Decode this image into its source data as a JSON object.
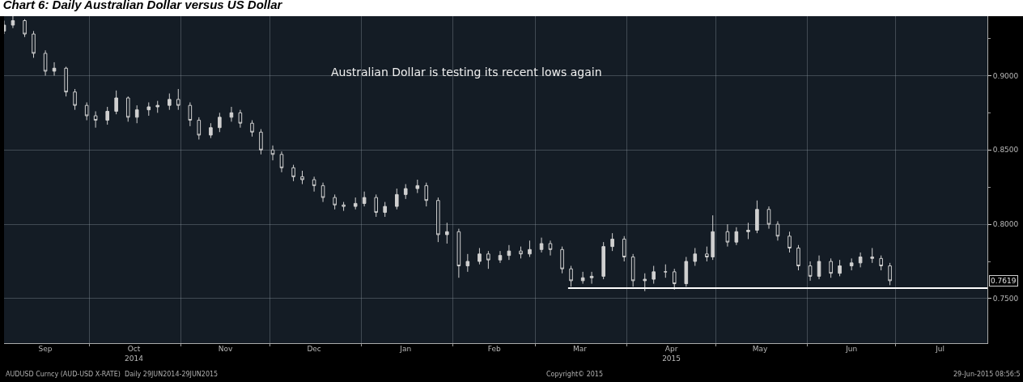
{
  "chart_data": {
    "type": "candlestick",
    "title": "Chart 6: Daily Australian Dollar versus US Dollar",
    "annotations": [
      "Australian Dollar is testing its recent lows again",
      "AUDUSD Curncy (AUD-USD X-RATE)  Daily 29JUN2014-29JUN2015",
      "Copyright© 2015",
      "29-Jun-2015 08:56:5",
      {
        "text": "0.7619",
        "y": 0.7619
      }
    ],
    "color": "#d0d0d0",
    "x": [
      "2014-09-02",
      "2014-09-05",
      "2014-09-09",
      "2014-09-12",
      "2014-09-16",
      "2014-09-19",
      "2014-09-23",
      "2014-09-26",
      "2014-09-30",
      "2014-10-03",
      "2014-10-07",
      "2014-10-10",
      "2014-10-14",
      "2014-10-17",
      "2014-10-21",
      "2014-10-24",
      "2014-10-28",
      "2014-10-31",
      "2014-11-04",
      "2014-11-07",
      "2014-11-11",
      "2014-11-14",
      "2014-11-18",
      "2014-11-21",
      "2014-11-25",
      "2014-11-28",
      "2014-12-02",
      "2014-12-05",
      "2014-12-09",
      "2014-12-12",
      "2014-12-16",
      "2014-12-19",
      "2014-12-23",
      "2014-12-26",
      "2014-12-30",
      "2015-01-02",
      "2015-01-06",
      "2015-01-09",
      "2015-01-13",
      "2015-01-16",
      "2015-01-20",
      "2015-01-23",
      "2015-01-27",
      "2015-01-30",
      "2015-02-03",
      "2015-02-06",
      "2015-02-10",
      "2015-02-13",
      "2015-02-17",
      "2015-02-20",
      "2015-02-24",
      "2015-02-27",
      "2015-03-03",
      "2015-03-06",
      "2015-03-10",
      "2015-03-13",
      "2015-03-17",
      "2015-03-20",
      "2015-03-24",
      "2015-03-27",
      "2015-03-31",
      "2015-04-03",
      "2015-04-07",
      "2015-04-10",
      "2015-04-14",
      "2015-04-17",
      "2015-04-21",
      "2015-04-24",
      "2015-04-28",
      "2015-04-30",
      "2015-05-05",
      "2015-05-08",
      "2015-05-12",
      "2015-05-15",
      "2015-05-19",
      "2015-05-22",
      "2015-05-26",
      "2015-05-29",
      "2015-06-02",
      "2015-06-05",
      "2015-06-09",
      "2015-06-12",
      "2015-06-16",
      "2015-06-19",
      "2015-06-23",
      "2015-06-26",
      "2015-06-29"
    ],
    "ohlc": [
      [
        0.93,
        0.937,
        0.928,
        0.934
      ],
      [
        0.934,
        0.94,
        0.932,
        0.937
      ],
      [
        0.937,
        0.938,
        0.926,
        0.928
      ],
      [
        0.928,
        0.93,
        0.912,
        0.915
      ],
      [
        0.915,
        0.917,
        0.9,
        0.903
      ],
      [
        0.903,
        0.909,
        0.9,
        0.905
      ],
      [
        0.905,
        0.906,
        0.886,
        0.889
      ],
      [
        0.889,
        0.891,
        0.877,
        0.88
      ],
      [
        0.88,
        0.882,
        0.87,
        0.873
      ],
      [
        0.873,
        0.876,
        0.865,
        0.87
      ],
      [
        0.87,
        0.879,
        0.867,
        0.876
      ],
      [
        0.876,
        0.89,
        0.874,
        0.885
      ],
      [
        0.885,
        0.886,
        0.869,
        0.872
      ],
      [
        0.872,
        0.88,
        0.868,
        0.877
      ],
      [
        0.877,
        0.882,
        0.873,
        0.879
      ],
      [
        0.879,
        0.883,
        0.875,
        0.88
      ],
      [
        0.88,
        0.888,
        0.877,
        0.884
      ],
      [
        0.884,
        0.891,
        0.877,
        0.88
      ],
      [
        0.88,
        0.882,
        0.866,
        0.87
      ],
      [
        0.87,
        0.872,
        0.857,
        0.86
      ],
      [
        0.86,
        0.868,
        0.858,
        0.865
      ],
      [
        0.865,
        0.875,
        0.862,
        0.872
      ],
      [
        0.872,
        0.879,
        0.869,
        0.875
      ],
      [
        0.875,
        0.877,
        0.865,
        0.868
      ],
      [
        0.868,
        0.87,
        0.859,
        0.862
      ],
      [
        0.862,
        0.864,
        0.847,
        0.85
      ],
      [
        0.85,
        0.853,
        0.843,
        0.847
      ],
      [
        0.847,
        0.849,
        0.835,
        0.838
      ],
      [
        0.838,
        0.84,
        0.829,
        0.832
      ],
      [
        0.832,
        0.836,
        0.827,
        0.83
      ],
      [
        0.83,
        0.832,
        0.822,
        0.826
      ],
      [
        0.826,
        0.828,
        0.815,
        0.818
      ],
      [
        0.818,
        0.82,
        0.81,
        0.813
      ],
      [
        0.813,
        0.815,
        0.809,
        0.812
      ],
      [
        0.812,
        0.818,
        0.81,
        0.814
      ],
      [
        0.814,
        0.822,
        0.812,
        0.818
      ],
      [
        0.818,
        0.82,
        0.805,
        0.808
      ],
      [
        0.808,
        0.815,
        0.805,
        0.812
      ],
      [
        0.812,
        0.824,
        0.81,
        0.82
      ],
      [
        0.82,
        0.827,
        0.817,
        0.824
      ],
      [
        0.824,
        0.83,
        0.821,
        0.826
      ],
      [
        0.826,
        0.828,
        0.812,
        0.816
      ],
      [
        0.816,
        0.818,
        0.788,
        0.793
      ],
      [
        0.793,
        0.801,
        0.787,
        0.795
      ],
      [
        0.795,
        0.797,
        0.764,
        0.772
      ],
      [
        0.772,
        0.78,
        0.768,
        0.775
      ],
      [
        0.775,
        0.784,
        0.773,
        0.78
      ],
      [
        0.78,
        0.782,
        0.77,
        0.776
      ],
      [
        0.776,
        0.782,
        0.774,
        0.779
      ],
      [
        0.779,
        0.786,
        0.776,
        0.782
      ],
      [
        0.782,
        0.785,
        0.777,
        0.78
      ],
      [
        0.78,
        0.789,
        0.778,
        0.783
      ],
      [
        0.783,
        0.791,
        0.781,
        0.787
      ],
      [
        0.787,
        0.789,
        0.779,
        0.783
      ],
      [
        0.783,
        0.785,
        0.767,
        0.77
      ],
      [
        0.77,
        0.772,
        0.758,
        0.762
      ],
      [
        0.762,
        0.768,
        0.76,
        0.764
      ],
      [
        0.764,
        0.768,
        0.76,
        0.765
      ],
      [
        0.765,
        0.788,
        0.763,
        0.785
      ],
      [
        0.785,
        0.794,
        0.782,
        0.79
      ],
      [
        0.79,
        0.792,
        0.775,
        0.778
      ],
      [
        0.778,
        0.78,
        0.758,
        0.762
      ],
      [
        0.762,
        0.767,
        0.755,
        0.763
      ],
      [
        0.763,
        0.772,
        0.76,
        0.768
      ],
      [
        0.768,
        0.773,
        0.764,
        0.768
      ],
      [
        0.768,
        0.77,
        0.756,
        0.76
      ],
      [
        0.76,
        0.778,
        0.758,
        0.775
      ],
      [
        0.775,
        0.784,
        0.772,
        0.78
      ],
      [
        0.78,
        0.785,
        0.775,
        0.778
      ],
      [
        0.778,
        0.806,
        0.776,
        0.795
      ],
      [
        0.795,
        0.8,
        0.785,
        0.788
      ],
      [
        0.788,
        0.798,
        0.786,
        0.795
      ],
      [
        0.795,
        0.801,
        0.79,
        0.796
      ],
      [
        0.796,
        0.816,
        0.794,
        0.81
      ],
      [
        0.81,
        0.812,
        0.797,
        0.8
      ],
      [
        0.8,
        0.802,
        0.789,
        0.792
      ],
      [
        0.792,
        0.795,
        0.781,
        0.784
      ],
      [
        0.784,
        0.786,
        0.769,
        0.772
      ],
      [
        0.772,
        0.775,
        0.762,
        0.765
      ],
      [
        0.765,
        0.779,
        0.763,
        0.775
      ],
      [
        0.775,
        0.777,
        0.764,
        0.767
      ],
      [
        0.767,
        0.776,
        0.765,
        0.772
      ],
      [
        0.772,
        0.777,
        0.769,
        0.774
      ],
      [
        0.774,
        0.781,
        0.771,
        0.778
      ],
      [
        0.778,
        0.784,
        0.774,
        0.777
      ],
      [
        0.777,
        0.779,
        0.769,
        0.772
      ],
      [
        0.772,
        0.774,
        0.759,
        0.762
      ]
    ],
    "series": [
      {
        "type": "line",
        "color": "#ffffff",
        "x": [
          "2015-03-12",
          "2015-08-01"
        ],
        "values": [
          0.757,
          0.757
        ]
      }
    ],
    "xlim": [
      "2014-09-02",
      "2015-08-01"
    ],
    "xticks": [
      {
        "value": "2014-10-01",
        "label": null
      },
      {
        "value": "2014-11-01",
        "label": null
      },
      {
        "value": "2014-12-01",
        "label": null
      },
      {
        "value": "2015-01-01",
        "label": null
      },
      {
        "value": "2015-02-01",
        "label": null
      },
      {
        "value": "2015-03-01",
        "label": null
      },
      {
        "value": "2015-04-01",
        "label": null
      },
      {
        "value": "2015-05-01",
        "label": null
      },
      {
        "value": "2015-06-01",
        "label": null
      },
      {
        "value": "2015-07-01",
        "label": null
      },
      {
        "value": "2014-09-16",
        "label": "Sep"
      },
      {
        "value": "2014-10-16",
        "label": "Oct\n2014"
      },
      {
        "value": "2014-11-16",
        "label": "Nov"
      },
      {
        "value": "2014-12-16",
        "label": "Dec"
      },
      {
        "value": "2015-01-16",
        "label": "Jan"
      },
      {
        "value": "2015-02-15",
        "label": "Feb"
      },
      {
        "value": "2015-03-16",
        "label": "Mar"
      },
      {
        "value": "2015-04-16",
        "label": "Apr\n2015"
      },
      {
        "value": "2015-05-16",
        "label": "May"
      },
      {
        "value": "2015-06-16",
        "label": "Jun"
      },
      {
        "value": "2015-07-16",
        "label": "Jul"
      }
    ],
    "ylim": [
      0.72,
      0.94
    ],
    "yticks": [
      {
        "value": 0.75,
        "label": "0.7500"
      },
      {
        "value": 0.8,
        "label": "0.8000"
      },
      {
        "value": 0.85,
        "label": "0.8500"
      },
      {
        "value": 0.9,
        "label": "0.9000"
      },
      {
        "value": 0.775,
        "label": null
      },
      {
        "value": 0.825,
        "label": null
      },
      {
        "value": 0.875,
        "label": null
      },
      {
        "value": 0.925,
        "label": null
      }
    ],
    "grid": true
  }
}
